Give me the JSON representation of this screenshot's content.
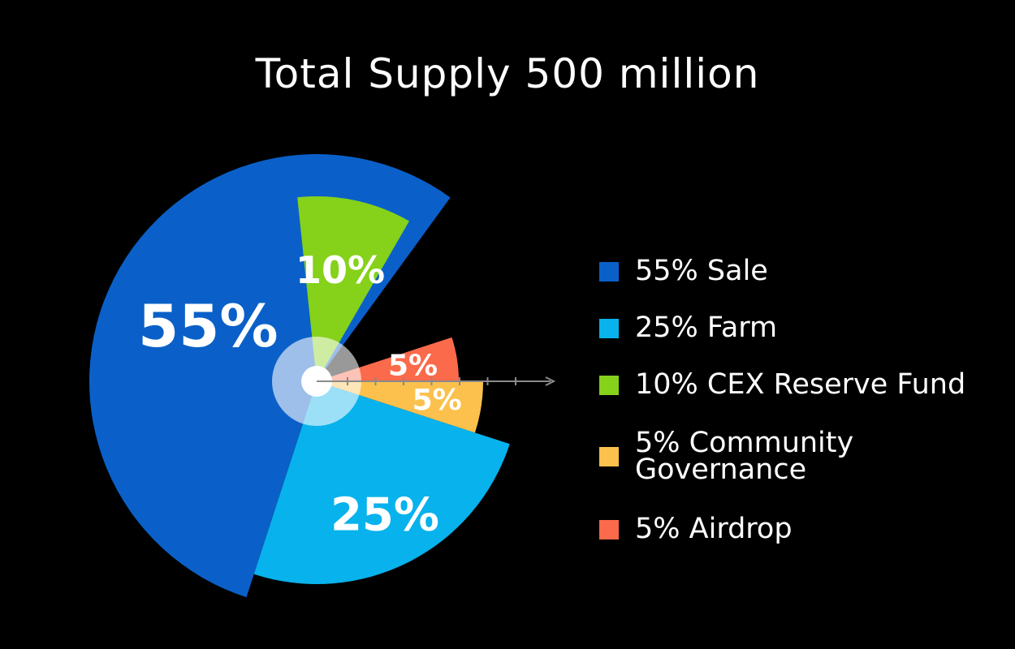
{
  "chart_data": {
    "type": "pie",
    "title": "Total Supply 500 million",
    "slices": [
      {
        "label": "55% Sale",
        "value": 55,
        "slice_label": "55%",
        "color": "#0a60c8"
      },
      {
        "label": "25% Farm",
        "value": 25,
        "slice_label": "25%",
        "color": "#08b2ec"
      },
      {
        "label": "10% CEX Reserve Fund",
        "value": 10,
        "slice_label": "10%",
        "color": "#86d11a"
      },
      {
        "label": "5% Community Governance",
        "value": 5,
        "slice_label": "5%",
        "color": "#fbc14c"
      },
      {
        "label": "5% Airdrop",
        "value": 5,
        "slice_label": "5%",
        "color": "#fb6a4a"
      }
    ],
    "legend_position": "right",
    "background": "#000000"
  }
}
